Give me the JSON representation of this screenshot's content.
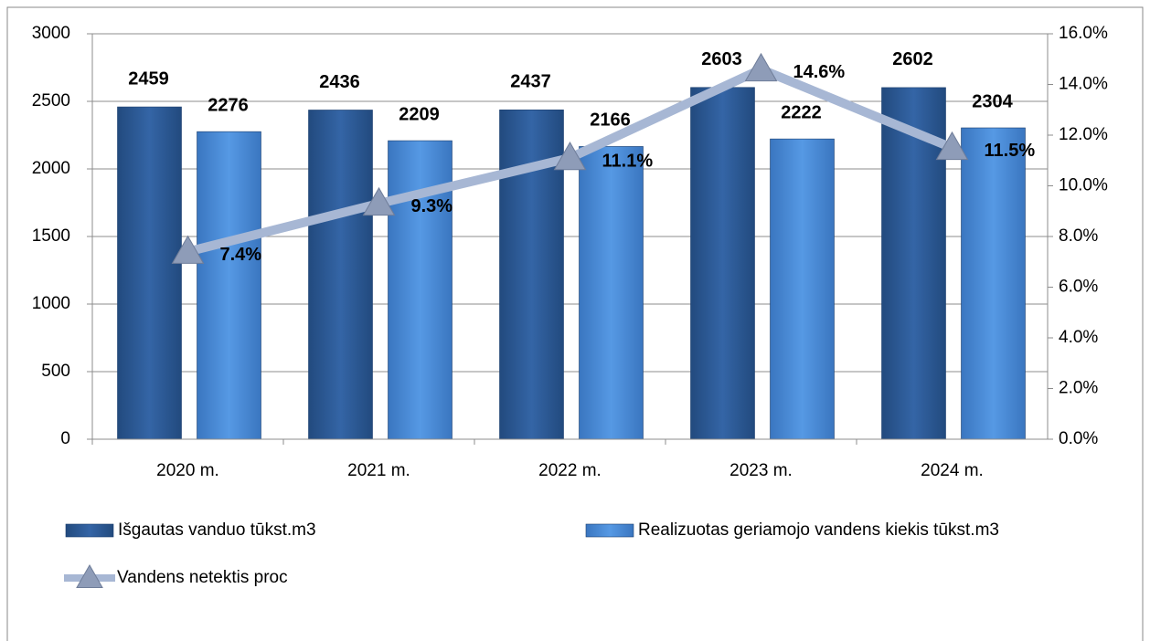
{
  "chart_data": {
    "type": "bar",
    "categories": [
      "2020 m.",
      "2021 m.",
      "2022 m.",
      "2023 m.",
      "2024 m."
    ],
    "series": [
      {
        "name": "Išgautas vanduo tūkst.m3",
        "type": "bar",
        "color": "#2b5b97",
        "values": [
          2459,
          2436,
          2437,
          2603,
          2602
        ]
      },
      {
        "name": "Realizuotas geriamojo vandens kiekis tūkst.m3",
        "type": "bar",
        "color": "#4a8ad6",
        "values": [
          2276,
          2209,
          2166,
          2222,
          2304
        ]
      },
      {
        "name": "Vandens netektis proc",
        "type": "line",
        "axis": "y2",
        "color": "#a7b7d4",
        "values": [
          7.4,
          9.3,
          11.1,
          14.6,
          11.5
        ],
        "value_labels": [
          "7.4%",
          "9.3%",
          "11.1%",
          "14.6%",
          "11.5%"
        ]
      }
    ],
    "ylim": [
      0,
      3000
    ],
    "yticks": [
      0,
      500,
      1000,
      1500,
      2000,
      2500,
      3000
    ],
    "y2lim": [
      0,
      16
    ],
    "y2ticks": [
      {
        "value": 0,
        "label": "0.0%"
      },
      {
        "value": 2,
        "label": "2.0%"
      },
      {
        "value": 4,
        "label": "4.0%"
      },
      {
        "value": 6,
        "label": "6.0%"
      },
      {
        "value": 8,
        "label": "8.0%"
      },
      {
        "value": 10,
        "label": "10.0%"
      },
      {
        "value": 12,
        "label": "12.0%"
      },
      {
        "value": 14,
        "label": "14.0%"
      },
      {
        "value": 16,
        "label": "16.0%"
      }
    ],
    "grid": true
  }
}
